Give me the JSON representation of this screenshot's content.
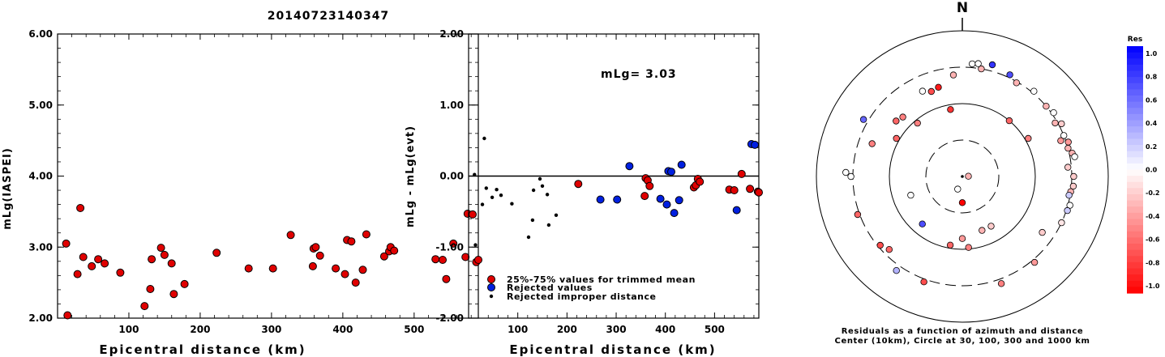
{
  "title": "20140723140347",
  "chart_data": [
    {
      "type": "scatter",
      "xlabel": "Epicentral distance (km)",
      "ylabel": "mLg(IASPEI)",
      "xlim": [
        0,
        590
      ],
      "ylim": [
        2.0,
        6.0
      ],
      "xticks": [
        "100",
        "200",
        "300",
        "400",
        "500"
      ],
      "yticks": [
        "2.00",
        "3.00",
        "4.00",
        "5.00",
        "6.00"
      ],
      "series": [
        {
          "color": "#e00000",
          "points": [
            [
              12,
              3.05
            ],
            [
              14,
              2.04
            ],
            [
              28,
              2.62
            ],
            [
              32,
              3.55
            ],
            [
              36,
              2.86
            ],
            [
              48,
              2.73
            ],
            [
              57,
              2.83
            ],
            [
              66,
              2.77
            ],
            [
              88,
              2.64
            ],
            [
              122,
              2.17
            ],
            [
              130,
              2.41
            ],
            [
              132,
              2.83
            ],
            [
              145,
              2.99
            ],
            [
              150,
              2.89
            ],
            [
              160,
              2.77
            ],
            [
              163,
              2.34
            ],
            [
              178,
              2.48
            ],
            [
              223,
              2.92
            ],
            [
              268,
              2.7
            ],
            [
              302,
              2.7
            ],
            [
              327,
              3.17
            ],
            [
              358,
              2.73
            ],
            [
              359,
              2.98
            ],
            [
              362,
              3.0
            ],
            [
              368,
              2.88
            ],
            [
              390,
              2.7
            ],
            [
              403,
              2.62
            ],
            [
              406,
              3.1
            ],
            [
              412,
              3.08
            ],
            [
              418,
              2.5
            ],
            [
              428,
              2.68
            ],
            [
              433,
              3.18
            ],
            [
              458,
              2.87
            ],
            [
              465,
              2.94
            ],
            [
              467,
              3.0
            ],
            [
              472,
              2.95
            ],
            [
              530,
              2.83
            ],
            [
              540,
              2.82
            ],
            [
              545,
              2.55
            ],
            [
              555,
              3.05
            ],
            [
              572,
              2.86
            ],
            [
              575,
              3.47
            ],
            [
              582,
              3.46
            ],
            [
              587,
              2.79
            ],
            [
              590,
              2.82
            ]
          ]
        }
      ]
    },
    {
      "type": "scatter",
      "xlabel": "Epicentral distance (km)",
      "ylabel": "mLg - mLg(evt)",
      "xlim": [
        0,
        590
      ],
      "ylim": [
        -2.0,
        2.0
      ],
      "xticks": [
        "100",
        "200",
        "300",
        "400",
        "500"
      ],
      "yticks": [
        "-2.00",
        "-1.00",
        "0.00",
        "1.00",
        "2.00"
      ],
      "annotation": "mLg= 3.03",
      "legend": [
        "25%-75% values for trimmed mean",
        "Rejected values",
        "Rejected improper distance"
      ],
      "series": [
        {
          "name": "25%-75% values for trimmed mean",
          "color": "#e00000",
          "points": [
            [
              223,
              -0.11
            ],
            [
              358,
              -0.28
            ],
            [
              360,
              -0.03
            ],
            [
              364,
              -0.06
            ],
            [
              368,
              -0.14
            ],
            [
              458,
              -0.16
            ],
            [
              462,
              -0.13
            ],
            [
              466,
              -0.04
            ],
            [
              470,
              -0.08
            ],
            [
              530,
              -0.19
            ],
            [
              540,
              -0.2
            ],
            [
              555,
              0.03
            ],
            [
              572,
              -0.18
            ],
            [
              588,
              -0.22
            ],
            [
              590,
              -0.23
            ]
          ]
        },
        {
          "name": "Rejected values",
          "color": "#0020e0",
          "points": [
            [
              268,
              -0.33
            ],
            [
              302,
              -0.33
            ],
            [
              327,
              0.14
            ],
            [
              390,
              -0.32
            ],
            [
              403,
              -0.4
            ],
            [
              406,
              0.07
            ],
            [
              412,
              0.06
            ],
            [
              418,
              -0.52
            ],
            [
              428,
              -0.34
            ],
            [
              433,
              0.16
            ],
            [
              545,
              -0.48
            ],
            [
              575,
              0.45
            ],
            [
              582,
              0.44
            ]
          ]
        },
        {
          "name": "Rejected improper distance",
          "color": "#000000",
          "points": [
            [
              12,
              0.02
            ],
            [
              14,
              -0.97
            ],
            [
              28,
              -0.4
            ],
            [
              32,
              0.53
            ],
            [
              36,
              -0.17
            ],
            [
              48,
              -0.3
            ],
            [
              57,
              -0.19
            ],
            [
              66,
              -0.27
            ],
            [
              88,
              -0.39
            ],
            [
              122,
              -0.86
            ],
            [
              130,
              -0.62
            ],
            [
              132,
              -0.2
            ],
            [
              145,
              -0.04
            ],
            [
              150,
              -0.14
            ],
            [
              160,
              -0.26
            ],
            [
              163,
              -0.69
            ],
            [
              178,
              -0.55
            ]
          ]
        }
      ]
    },
    {
      "type": "polar",
      "north_label": "N",
      "caption_line1": "Residuals as a function of azimuth and distance",
      "caption_line2": "Center (10km), Circle at 30, 100, 300 and 1000 km",
      "colorbar_title": "Res",
      "colorbar_ticks": [
        "1.0",
        "0.8",
        "0.6",
        "0.4",
        "0.2",
        "0.0",
        "-0.2",
        "-0.4",
        "-0.6",
        "-0.8",
        "-1.0"
      ],
      "points": [
        {
          "az": 88,
          "dist": 12,
          "res": -0.3
        },
        {
          "az": 200,
          "dist": 15,
          "res": 0.0
        },
        {
          "az": 180,
          "dist": 22,
          "res": -1.0
        },
        {
          "az": 160,
          "dist": 60,
          "res": -0.3
        },
        {
          "az": 180,
          "dist": 70,
          "res": -0.4
        },
        {
          "az": 150,
          "dist": 60,
          "res": -0.2
        },
        {
          "az": 220,
          "dist": 70,
          "res": 0.7
        },
        {
          "az": 250,
          "dist": 55,
          "res": 0.0
        },
        {
          "az": 190,
          "dist": 90,
          "res": -0.6
        },
        {
          "az": 175,
          "dist": 95,
          "res": -0.5
        },
        {
          "az": 350,
          "dist": 85,
          "res": -0.8
        },
        {
          "az": 320,
          "dist": 90,
          "res": -0.5
        },
        {
          "az": 40,
          "dist": 100,
          "res": -0.6
        },
        {
          "az": 60,
          "dist": 110,
          "res": -0.5
        },
        {
          "az": 300,
          "dist": 110,
          "res": -0.6
        },
        {
          "az": 340,
          "dist": 170,
          "res": -0.7
        },
        {
          "az": 345,
          "dist": 180,
          "res": -0.9
        },
        {
          "az": 335,
          "dist": 190,
          "res": 0.0
        },
        {
          "az": 355,
          "dist": 240,
          "res": -0.3
        },
        {
          "az": 10,
          "dist": 300,
          "res": -0.3
        },
        {
          "az": 5,
          "dist": 340,
          "res": 0.0
        },
        {
          "az": 8,
          "dist": 350,
          "res": 0.0
        },
        {
          "az": 15,
          "dist": 370,
          "res": 0.8
        },
        {
          "az": 25,
          "dist": 330,
          "res": 0.7
        },
        {
          "az": 30,
          "dist": 290,
          "res": -0.3
        },
        {
          "az": 40,
          "dist": 320,
          "res": 0.0
        },
        {
          "az": 50,
          "dist": 300,
          "res": -0.3
        },
        {
          "az": 55,
          "dist": 320,
          "res": 0.0
        },
        {
          "az": 60,
          "dist": 280,
          "res": -0.3
        },
        {
          "az": 62,
          "dist": 330,
          "res": -0.2
        },
        {
          "az": 68,
          "dist": 300,
          "res": 0.0
        },
        {
          "az": 70,
          "dist": 260,
          "res": -0.4
        },
        {
          "az": 72,
          "dist": 320,
          "res": -0.4
        },
        {
          "az": 75,
          "dist": 300,
          "res": -0.3
        },
        {
          "az": 78,
          "dist": 330,
          "res": -0.3
        },
        {
          "az": 80,
          "dist": 350,
          "res": 0.0
        },
        {
          "az": 85,
          "dist": 270,
          "res": -0.2
        },
        {
          "az": 90,
          "dist": 320,
          "res": -0.2
        },
        {
          "az": 95,
          "dist": 320,
          "res": -0.2
        },
        {
          "az": 98,
          "dist": 300,
          "res": -0.3
        },
        {
          "az": 100,
          "dist": 290,
          "res": 0.2
        },
        {
          "az": 105,
          "dist": 320,
          "res": 0.0
        },
        {
          "az": 108,
          "dist": 310,
          "res": 0.2
        },
        {
          "az": 115,
          "dist": 300,
          "res": -0.1
        },
        {
          "az": 125,
          "dist": 210,
          "res": -0.2
        },
        {
          "az": 140,
          "dist": 330,
          "res": -0.4
        },
        {
          "az": 160,
          "dist": 350,
          "res": -0.5
        },
        {
          "az": 200,
          "dist": 330,
          "res": -0.7
        },
        {
          "az": 215,
          "dist": 360,
          "res": 0.3
        },
        {
          "az": 225,
          "dist": 250,
          "res": -0.6
        },
        {
          "az": 230,
          "dist": 280,
          "res": -0.7
        },
        {
          "az": 250,
          "dist": 320,
          "res": -0.6
        },
        {
          "az": 272,
          "dist": 380,
          "res": 0.0
        },
        {
          "az": 270,
          "dist": 320,
          "res": 0.0
        },
        {
          "az": 290,
          "dist": 200,
          "res": -0.5
        },
        {
          "az": 300,
          "dist": 350,
          "res": 0.6
        },
        {
          "az": 310,
          "dist": 150,
          "res": -0.6
        },
        {
          "az": 315,
          "dist": 140,
          "res": -0.5
        }
      ]
    }
  ]
}
